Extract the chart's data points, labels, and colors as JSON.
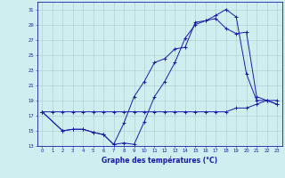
{
  "title": "Graphe des températures (°C)",
  "background_color": "#ceeef0",
  "grid_color": "#aacccc",
  "line_color": "#1a1aaa",
  "xlim": [
    -0.5,
    23.5
  ],
  "ylim": [
    13,
    32
  ],
  "yticks": [
    13,
    15,
    17,
    19,
    21,
    23,
    25,
    27,
    29,
    31
  ],
  "xticks": [
    0,
    1,
    2,
    3,
    4,
    5,
    6,
    7,
    8,
    9,
    10,
    11,
    12,
    13,
    14,
    15,
    16,
    17,
    18,
    19,
    20,
    21,
    22,
    23
  ],
  "series1_x": [
    0,
    1,
    2,
    3,
    4,
    5,
    6,
    7,
    8,
    9,
    10,
    11,
    12,
    13,
    14,
    15,
    16,
    17,
    18,
    19,
    20,
    21,
    22,
    23
  ],
  "series1_y": [
    17.5,
    17.5,
    17.5,
    17.5,
    17.5,
    17.5,
    17.5,
    17.5,
    17.5,
    17.5,
    17.5,
    17.5,
    17.5,
    17.5,
    17.5,
    17.5,
    17.5,
    17.5,
    17.5,
    18.0,
    18.0,
    18.5,
    19.0,
    18.5
  ],
  "series2_x": [
    0,
    2,
    3,
    4,
    5,
    6,
    7,
    8,
    9,
    10,
    11,
    12,
    13,
    14,
    15,
    16,
    17,
    18,
    19,
    20,
    21,
    22,
    23
  ],
  "series2_y": [
    17.5,
    15.0,
    15.2,
    15.2,
    14.8,
    14.5,
    13.2,
    13.4,
    13.2,
    16.2,
    19.5,
    21.5,
    24.0,
    27.2,
    29.0,
    29.5,
    30.2,
    31.0,
    30.0,
    22.5,
    19.0,
    19.0,
    19.0
  ],
  "series3_x": [
    0,
    2,
    3,
    4,
    5,
    6,
    7,
    8,
    9,
    10,
    11,
    12,
    13,
    14,
    15,
    16,
    17,
    18,
    19,
    20,
    21,
    22,
    23
  ],
  "series3_y": [
    17.5,
    15.0,
    15.2,
    15.2,
    14.8,
    14.5,
    13.2,
    16.0,
    19.5,
    21.5,
    24.0,
    24.5,
    25.8,
    26.0,
    29.3,
    29.5,
    29.8,
    28.5,
    27.8,
    28.0,
    19.5,
    19.0,
    18.5
  ]
}
